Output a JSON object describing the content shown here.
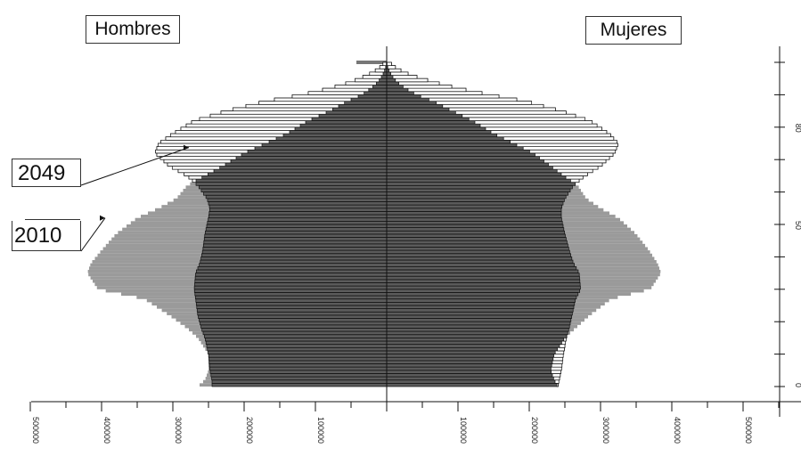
{
  "chart_data": {
    "type": "population-pyramid",
    "left_group": "Hombres",
    "right_group": "Mujeres",
    "series": [
      {
        "name": "2049"
      },
      {
        "name": "2010"
      }
    ],
    "x_ticks": [
      {
        "value": -500000,
        "label": "500000"
      },
      {
        "value": -400000,
        "label": "400000"
      },
      {
        "value": -300000,
        "label": "300000"
      },
      {
        "value": -200000,
        "label": "200000"
      },
      {
        "value": -100000,
        "label": "100000"
      },
      {
        "value": 100000,
        "label": "100000"
      },
      {
        "value": 200000,
        "label": "200000"
      },
      {
        "value": 300000,
        "label": "300000"
      },
      {
        "value": 400000,
        "label": "400000"
      },
      {
        "value": 500000,
        "label": "500000"
      }
    ],
    "xlim": [
      -500000,
      500000
    ],
    "ylim": [
      0,
      100
    ],
    "y_ticks": [
      {
        "value": 0,
        "label": "0"
      },
      {
        "value": 50,
        "label": "50"
      },
      {
        "value": 80,
        "label": "80"
      }
    ],
    "age_breakpoints": [
      0,
      2,
      5,
      10,
      15,
      18,
      22,
      27,
      30,
      35,
      38,
      42,
      47,
      52,
      55,
      58,
      62,
      65,
      68,
      72,
      75,
      78,
      82,
      85,
      88,
      90,
      92,
      94,
      96,
      98,
      100
    ],
    "male_2010": [
      265000,
      255000,
      250000,
      250000,
      265000,
      280000,
      305000,
      340000,
      405000,
      420000,
      415000,
      400000,
      380000,
      350000,
      320000,
      295000,
      280000,
      255000,
      230000,
      200000,
      170000,
      140000,
      110000,
      80000,
      55000,
      35000,
      22000,
      12000,
      6000,
      2000,
      0
    ],
    "female_2010": [
      240000,
      235000,
      230000,
      235000,
      250000,
      265000,
      285000,
      315000,
      370000,
      385000,
      380000,
      368000,
      350000,
      325000,
      300000,
      280000,
      268000,
      248000,
      230000,
      205000,
      178000,
      150000,
      120000,
      92000,
      65000,
      42000,
      26000,
      14000,
      7000,
      2000,
      0
    ],
    "male_2049": [
      245000,
      245000,
      248000,
      250000,
      255000,
      260000,
      265000,
      268000,
      270000,
      268000,
      262000,
      258000,
      255000,
      250000,
      248000,
      252000,
      265000,
      280000,
      305000,
      325000,
      320000,
      300000,
      270000,
      225000,
      170000,
      120000,
      80000,
      50000,
      28000,
      12000,
      3000
    ],
    "female_2049": [
      240000,
      242000,
      245000,
      248000,
      252000,
      256000,
      260000,
      265000,
      272000,
      270000,
      262000,
      256000,
      250000,
      245000,
      245000,
      250000,
      262000,
      278000,
      300000,
      320000,
      325000,
      312000,
      285000,
      245000,
      195000,
      145000,
      100000,
      65000,
      35000,
      15000,
      4000
    ],
    "annotation_2049_age": 74,
    "annotation_2010_age": 52
  }
}
